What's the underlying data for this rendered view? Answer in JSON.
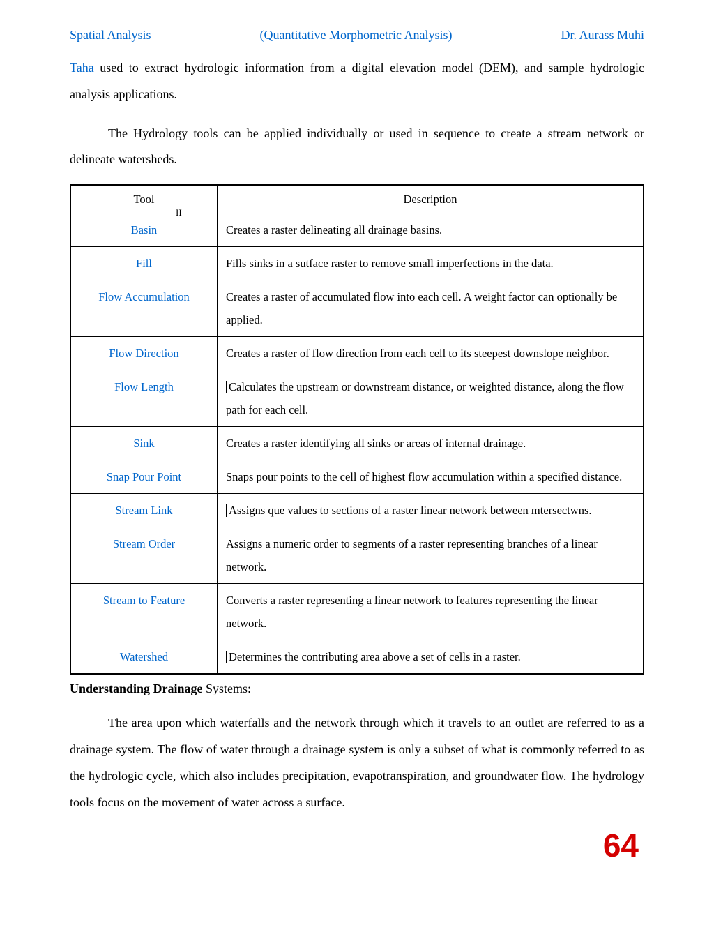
{
  "header": {
    "left": "Spatial Analysis",
    "center": "(Quantitative Morphometric Analysis)",
    "right": "Dr. Aurass Muhi"
  },
  "intro": {
    "taha": "Taha",
    "line1_rest": " used  to  extract  hydrologic  information  from  a  digital  elevation  model  (DEM), and sample hydrologic analysis applications.",
    "para2": "The Hydrology tools can be applied individually or used in sequence to create a stream network or delineate watersheds."
  },
  "table": {
    "head_tool": "Tool",
    "head_desc": "Description",
    "sub_ii": "II",
    "rows": [
      {
        "tool": "Basin",
        "desc": "Creates a raster delineating all drainage basins."
      },
      {
        "tool": "Fill",
        "desc": "Fills sinks in a sutface raster to remove small imperfections in the data."
      },
      {
        "tool": "Flow Accumulation",
        "desc": "Creates a raster of accumulated flow into each cell. A weight factor can optionally be applied."
      },
      {
        "tool": "Flow Direction",
        "desc": "Creates a raster of flow direction from each cell to its steepest downslope neighbor."
      },
      {
        "tool": "Flow Length",
        "desc": "Calculates the upstream or downstream distance, or weighted distance, along the flow path for each cell."
      },
      {
        "tool": "Sink",
        "desc": "Creates a raster identifying all sinks or areas of internal drainage."
      },
      {
        "tool": "Snap Pour Point",
        "desc": "Snaps pour points to the cell of highest flow accumulation within a specified distance."
      },
      {
        "tool": "Stream Link",
        "desc": "Assigns   que values to sections of a raster linear network between mtersectwns."
      },
      {
        "tool": "Stream Order",
        "desc": "Assigns a numeric order to segments of a raster representing branches of a linear network."
      },
      {
        "tool": "Stream to Feature",
        "desc": "Converts a raster representing a linear network to features representing the linear network."
      },
      {
        "tool": "Watershed",
        "desc": "Determines the contributing area above a set of cells in a raster."
      }
    ]
  },
  "section": {
    "title_bold": "Understanding Drainage",
    "title_rest": " Systems:",
    "body": "The area upon which waterfalls  and the network through which it travels to an outlet are referred to as a drainage system. The flow of water through a drainage system is only a subset of what is commonly  referred  to as the hydrologic  cycle, which also includes precipitation, evapotranspiration, and groundwater flow. The hydrology tools focus on the movement of water across a surface."
  },
  "page_number": "64",
  "colors": {
    "link": "#0066cc",
    "pagenum": "#d40000",
    "text": "#000000",
    "background": "#ffffff"
  }
}
